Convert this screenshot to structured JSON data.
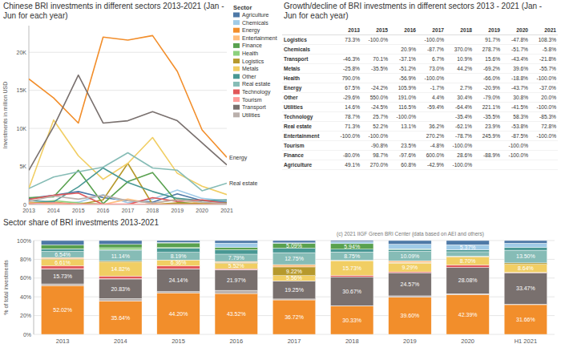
{
  "chart_data": [
    {
      "type": "line",
      "title": "Chinese BRI investments in different sectors 2013-2021 (Jan - Jun for each year)",
      "ylabel": "Investments in million USD",
      "legend_title": "Sector",
      "legend": "top-right",
      "grid": true,
      "categories": [
        "2013",
        "2014",
        "2015",
        "2016",
        "2017",
        "2018",
        "2019",
        "2020",
        "2021"
      ],
      "ylim": [
        0,
        23500
      ],
      "yticks": [
        0,
        {
          "value": 5000,
          "label": "5K"
        },
        {
          "value": 10000,
          "label": "10K"
        },
        {
          "value": 15000,
          "label": "15K"
        },
        {
          "value": 20000,
          "label": "20K"
        }
      ],
      "series": [
        {
          "name": "Agriculture",
          "color": "#4e79a7",
          "values": [
            800,
            1200,
            1700,
            900,
            500,
            300,
            1400,
            500,
            300
          ]
        },
        {
          "name": "Chemicals",
          "color": "#a0cbe8",
          "values": [
            0,
            0,
            300,
            1300,
            200,
            700,
            1900,
            800,
            500
          ]
        },
        {
          "name": "Energy",
          "color": "#f28e2b",
          "values": [
            16500,
            14000,
            10700,
            22000,
            21600,
            22200,
            17500,
            9800,
            6200
          ]
        },
        {
          "name": "Entertainment",
          "color": "#ffbe7d",
          "values": [
            300,
            0,
            0,
            0,
            700,
            100,
            700,
            100,
            0
          ]
        },
        {
          "name": "Finance",
          "color": "#59a14f",
          "values": [
            900,
            1000,
            4500,
            100,
            3000,
            4200,
            300,
            0,
            0
          ]
        },
        {
          "name": "Health",
          "color": "#8cd17d",
          "values": [
            50,
            500,
            200,
            50,
            0,
            0,
            50,
            40,
            0
          ]
        },
        {
          "name": "Logistics",
          "color": "#b6992d",
          "values": [
            150,
            300,
            0,
            600,
            5400,
            0,
            200,
            100,
            200
          ]
        },
        {
          "name": "Metals",
          "color": "#f1ce63",
          "values": [
            2100,
            11100,
            6400,
            3300,
            5400,
            8800,
            4100,
            2400,
            1300
          ]
        },
        {
          "name": "Other",
          "color": "#499894",
          "values": [
            500,
            350,
            2300,
            4800,
            2900,
            1700,
            800,
            500,
            600
          ]
        },
        {
          "name": "Real estate",
          "color": "#86bcb6",
          "values": [
            2100,
            3600,
            4300,
            4900,
            6800,
            4800,
            4500,
            1800,
            2800
          ]
        },
        {
          "name": "Technology",
          "color": "#e15759",
          "values": [
            650,
            1200,
            1500,
            0,
            0,
            900,
            400,
            600,
            100
          ]
        },
        {
          "name": "Tourism",
          "color": "#ff9d9a",
          "values": [
            100,
            200,
            50,
            60,
            60,
            0,
            0,
            0,
            0
          ]
        },
        {
          "name": "Transport",
          "color": "#79706e",
          "values": [
            4500,
            10200,
            17000,
            10700,
            11000,
            12200,
            11000,
            8100,
            5200
          ]
        },
        {
          "name": "Utilities",
          "color": "#bab0ac",
          "values": [
            400,
            1100,
            700,
            1200,
            500,
            200,
            600,
            300,
            100
          ]
        }
      ],
      "annotations": [
        {
          "text": "Energy"
        },
        {
          "text": "Real estate"
        }
      ]
    },
    {
      "type": "table",
      "title": "Growth/decline of BRI investments in different sectors 2013 - 2021 (Jan - Jun for each year)",
      "columns": [
        "2013",
        "2015",
        "2016",
        "2017",
        "2018",
        "2019",
        "2020",
        "2021"
      ],
      "rows": [
        {
          "label": "Logistics",
          "cells": [
            "73.3%",
            "-100.0%",
            null,
            "-100.0%",
            null,
            "91.7%",
            "-47.8%",
            "108.3%"
          ]
        },
        {
          "label": "Chemicals",
          "cells": [
            null,
            null,
            "20.9%",
            "-87.7%",
            "370.0%",
            "278.7%",
            "-51.7%",
            "-5.8%"
          ]
        },
        {
          "label": "Transport",
          "cells": [
            "-46.3%",
            "70.1%",
            "-37.1%",
            "6.7%",
            "10.9%",
            "15.6%",
            "-43.4%",
            "-21.8%"
          ]
        },
        {
          "label": "Metals",
          "cells": [
            "-25.8%",
            "-35.5%",
            "-51.2%",
            "73.0%",
            "44.2%",
            "-69.2%",
            "39.6%",
            "-55.7%"
          ]
        },
        {
          "label": "Health",
          "cells": [
            "790.0%",
            null,
            "-56.9%",
            "-100.0%",
            null,
            "-66.0%",
            "-18.8%",
            "-100.0%"
          ]
        },
        {
          "label": "Energy",
          "cells": [
            "67.5%",
            "-24.2%",
            "105.9%",
            "-1.7%",
            "2.7%",
            "-20.9%",
            "-43.7%",
            "-37.0%"
          ]
        },
        {
          "label": "Other",
          "cells": [
            "-29.6%",
            "550.0%",
            "191.0%",
            "4.4%",
            "30.4%",
            "-79.0%",
            "30.8%",
            "20.0%"
          ]
        },
        {
          "label": "Utilities",
          "cells": [
            "14.6%",
            "-24.5%",
            "116.5%",
            "-59.4%",
            "-64.4%",
            "221.1%",
            "-41.5%",
            "-100.0%"
          ]
        },
        {
          "label": "Technology",
          "cells": [
            "78.7%",
            "25.7%",
            "-100.0%",
            null,
            "-35.4%",
            "-35.5%",
            "58.3%",
            "-85.3%"
          ]
        },
        {
          "label": "Real estate",
          "cells": [
            "71.3%",
            "52.2%",
            "13.1%",
            "36.2%",
            "-62.1%",
            "23.9%",
            "-53.8%",
            "72.8%"
          ]
        },
        {
          "label": "Entertainment",
          "cells": [
            "-100.0%",
            "-100.0%",
            null,
            "270.2%",
            "-78.7%",
            "245.9%",
            "-87.5%",
            "-100.0%"
          ]
        },
        {
          "label": "Tourism",
          "cells": [
            null,
            "-90.8%",
            "23.5%",
            "-4.8%",
            "-100.0%",
            null,
            "-100.0%",
            null
          ]
        },
        {
          "label": "Finance",
          "cells": [
            "-80.0%",
            "98.7%",
            "-97.6%",
            "600.0%",
            "28.6%",
            "-88.9%",
            "-100.0%",
            null
          ]
        },
        {
          "label": "Agriculture",
          "cells": [
            "49.1%",
            "270.0%",
            "60.8%",
            "-42.9%",
            "-100.0%",
            null,
            null,
            null
          ]
        }
      ]
    },
    {
      "type": "bar",
      "stacked": true,
      "data_labels": true,
      "grid": true,
      "title": "Sector share of BRI investments 2013-2021",
      "ylabel": "% of total investments",
      "annotations": [
        {
          "text": "(c) 2021 IIGF Green BRI Center (data based on AEI and others)"
        }
      ],
      "categories": [
        "2013",
        "2014",
        "2015",
        "2016",
        "2017",
        "2018",
        "2019",
        "2020",
        "H1 2021"
      ],
      "ylim": [
        0,
        100
      ],
      "yticks": [
        {
          "value": 0,
          "label": "0%"
        },
        {
          "value": 20,
          "label": "20%"
        },
        {
          "value": 40,
          "label": "40%"
        },
        {
          "value": 60,
          "label": "60%"
        },
        {
          "value": 80,
          "label": "80%"
        },
        {
          "value": 100,
          "label": "100%"
        }
      ],
      "series": [
        {
          "name": "Energy",
          "color": "#f28e2b",
          "values": [
            52.02,
            35.64,
            44.2,
            43.52,
            36.72,
            30.33,
            39.6,
            42.39,
            31.66
          ],
          "value_labels": [
            "52.02%",
            "35.64%",
            "44.20%",
            "43.52%",
            "36.72%",
            "30.33%",
            "39.60%",
            "42.39%",
            "31.66%"
          ]
        },
        {
          "name": "Utilities",
          "color": "#bab0ac",
          "values": [
            1.8,
            2.5,
            1.5,
            3.4,
            1.0,
            0.3,
            1.5,
            1.0,
            0.5
          ]
        },
        {
          "name": "Transport",
          "color": "#79706e",
          "values": [
            15.73,
            20.83,
            24.14,
            21.97,
            19.25,
            30.67,
            24.57,
            28.08,
            33.47
          ],
          "value_labels": [
            "15.73%",
            "20.83%",
            "24.14%",
            "21.97%",
            "19.25%",
            "30.67%",
            "24.57%",
            "28.08%",
            "33.47%"
          ]
        },
        {
          "name": "Tourism",
          "color": "#ff9d9a",
          "values": [
            0.5,
            0.4,
            0.1,
            0.1,
            0.1,
            0,
            0,
            0,
            0
          ]
        },
        {
          "name": "Technology",
          "color": "#e15759",
          "values": [
            3.0,
            2.8,
            3.0,
            1.0,
            0,
            1.5,
            1.0,
            2.5,
            0.4
          ]
        },
        {
          "name": "Metals",
          "color": "#f1ce63",
          "values": [
            6.61,
            14.82,
            6.36,
            5.52,
            5.56,
            15.73,
            9.29,
            8.7,
            8.64
          ],
          "value_labels": [
            "6.61%",
            "14.82%",
            "6.36%",
            "5.52%",
            "5.56%",
            "15.73%",
            "9.29%",
            "8.70%",
            "8.64%"
          ]
        },
        {
          "name": "Logistics",
          "color": "#b6992d",
          "values": [
            0.8,
            1.0,
            0,
            1.2,
            9.22,
            0,
            0.5,
            0.3,
            1.5
          ],
          "value_labels": [
            null,
            null,
            null,
            null,
            "9.22%",
            null,
            null,
            null,
            null
          ]
        },
        {
          "name": "Entertainment",
          "color": "#ffbe7d",
          "values": [
            1.5,
            0,
            0,
            1.0,
            2.5,
            0.5,
            2.0,
            0.3,
            0
          ]
        },
        {
          "name": "Real estate",
          "color": "#86bcb6",
          "values": [
            6.54,
            11.14,
            8.19,
            7.79,
            12.75,
            8.75,
            10.09,
            4.8,
            13.5
          ],
          "value_labels": [
            "6.54%",
            "11.14%",
            "8.19%",
            "7.79%",
            "12.75%",
            "8.75%",
            "10.09%",
            null,
            "13.50%"
          ]
        },
        {
          "name": "Other",
          "color": "#499894",
          "values": [
            2.5,
            1.2,
            4.5,
            4.5,
            4.9,
            3.0,
            2.0,
            2.0,
            3.0
          ]
        },
        {
          "name": "Health",
          "color": "#8cd17d",
          "values": [
            0.3,
            2.0,
            0.5,
            0.2,
            0,
            0,
            0.1,
            0.1,
            0
          ]
        },
        {
          "name": "Finance",
          "color": "#59a14f",
          "values": [
            4.2,
            3.67,
            4.91,
            2.5,
            5.09,
            5.94,
            0.6,
            0,
            0
          ],
          "value_labels": [
            null,
            null,
            null,
            null,
            "5.09%",
            "5.94%",
            null,
            null,
            null
          ]
        },
        {
          "name": "Chemicals",
          "color": "#a0cbe8",
          "values": [
            0,
            0,
            0.6,
            4.6,
            0.5,
            2.0,
            4.9,
            5.37,
            4.5
          ],
          "value_labels": [
            null,
            null,
            null,
            null,
            null,
            null,
            null,
            "5.37%",
            null
          ]
        },
        {
          "name": "Agriculture",
          "color": "#4e79a7",
          "values": [
            4.5,
            4.0,
            2.0,
            2.7,
            2.41,
            1.28,
            3.85,
            4.46,
            2.83
          ]
        }
      ]
    }
  ]
}
